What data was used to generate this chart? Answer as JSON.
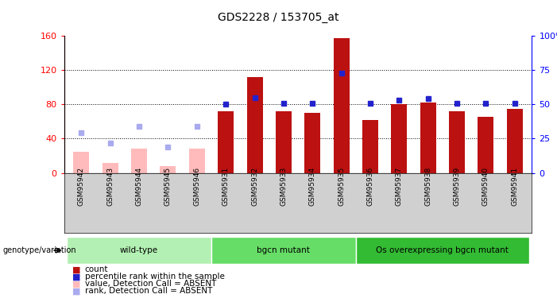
{
  "title": "GDS2228 / 153705_at",
  "samples": [
    "GSM95942",
    "GSM95943",
    "GSM95944",
    "GSM95945",
    "GSM95946",
    "GSM95931",
    "GSM95932",
    "GSM95933",
    "GSM95934",
    "GSM95935",
    "GSM95936",
    "GSM95937",
    "GSM95938",
    "GSM95939",
    "GSM95940",
    "GSM95941"
  ],
  "count_values": [
    25,
    12,
    28,
    8,
    28,
    72,
    112,
    72,
    70,
    157,
    62,
    80,
    82,
    72,
    65,
    75
  ],
  "rank_values_pct": [
    29,
    22,
    34,
    19,
    34,
    50,
    55,
    51,
    51,
    73,
    51,
    53,
    54,
    51,
    51,
    51
  ],
  "absent_flags": [
    true,
    true,
    true,
    true,
    true,
    false,
    false,
    false,
    false,
    false,
    false,
    false,
    false,
    false,
    false,
    false
  ],
  "groups": [
    {
      "label": "wild-type",
      "start": 0,
      "end": 5,
      "color": "#b3f0b3"
    },
    {
      "label": "bgcn mutant",
      "start": 5,
      "end": 10,
      "color": "#66dd66"
    },
    {
      "label": "Os overexpressing bgcn mutant",
      "start": 10,
      "end": 16,
      "color": "#33bb33"
    }
  ],
  "ylim_left": [
    0,
    160
  ],
  "ylim_right": [
    0,
    100
  ],
  "yticks_left": [
    0,
    40,
    80,
    120,
    160
  ],
  "yticks_right": [
    0,
    25,
    50,
    75,
    100
  ],
  "bar_color_present": "#bb1111",
  "bar_color_absent": "#ffbbbb",
  "rank_color_present": "#2222cc",
  "rank_color_absent": "#aaaaee",
  "bar_width": 0.55,
  "plot_bg": "#ffffff",
  "fig_bg": "#ffffff",
  "tick_bg": "#d0d0d0"
}
